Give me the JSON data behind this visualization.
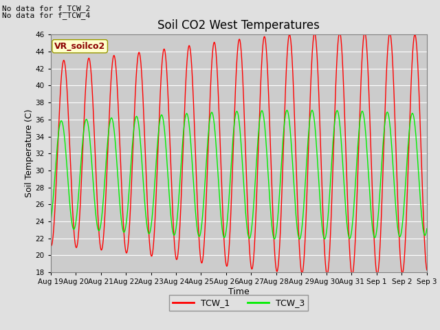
{
  "title": "Soil CO2 West Temperatures",
  "xlabel": "Time",
  "ylabel": "Soil Temperature (C)",
  "ylim": [
    18,
    46
  ],
  "yticks": [
    18,
    20,
    22,
    24,
    26,
    28,
    30,
    32,
    34,
    36,
    38,
    40,
    42,
    44,
    46
  ],
  "bg_color": "#e0e0e0",
  "plot_bg_color": "#cccccc",
  "line1_color": "red",
  "line2_color": "#00ee00",
  "line1_label": "TCW_1",
  "line2_label": "TCW_3",
  "annotation_text1": "No data for f_TCW_2",
  "annotation_text2": "No data for f_TCW_4",
  "vr_label": "VR_soilco2",
  "legend_box_color": "#ffffcc",
  "legend_box_edge": "#999900",
  "xtick_labels": [
    "Aug 19",
    "Aug 20",
    "Aug 21",
    "Aug 22",
    "Aug 23",
    "Aug 24",
    "Aug 25",
    "Aug 26",
    "Aug 27",
    "Aug 28",
    "Aug 29",
    "Aug 30",
    "Aug 31",
    "Sep 1",
    "Sep 2",
    "Sep 3"
  ],
  "title_fontsize": 12,
  "axis_label_fontsize": 9,
  "tick_fontsize": 7.5,
  "annot_fontsize": 8,
  "legend_fontsize": 9
}
